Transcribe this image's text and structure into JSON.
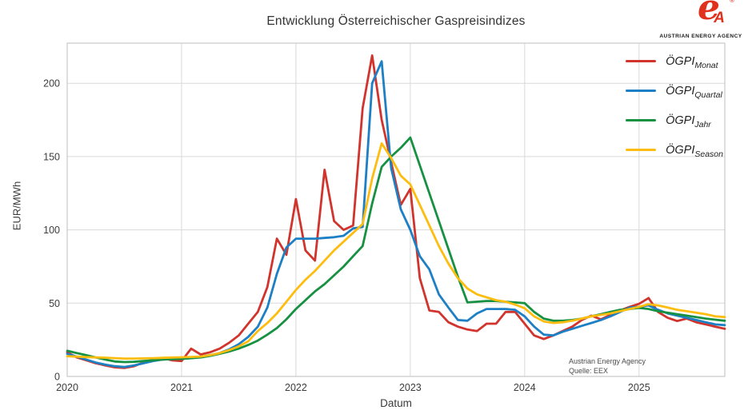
{
  "header": {
    "logo": {
      "letter_e": "e",
      "letter_a": "A",
      "registered_mark": "®",
      "caption": "AUSTRIAN ENERGY AGENCY"
    }
  },
  "chart_data": {
    "type": "line",
    "title": "Entwicklung Österreichischer Gaspreisindizes",
    "xlabel": "Datum",
    "ylabel": "EUR/MWh",
    "x_start_month": "2020-01",
    "x_end_month": "2025-10",
    "x_tick_labels": [
      "2020",
      "2021",
      "2022",
      "2023",
      "2024",
      "2025"
    ],
    "x_tick_month_indices": [
      0,
      12,
      24,
      36,
      48,
      60
    ],
    "y_ticks": [
      0,
      50,
      100,
      150,
      200
    ],
    "ylim": [
      0,
      227.4
    ],
    "grid": true,
    "legend_position": "upper right",
    "annotation": {
      "line1": "Austrian Energy Agency",
      "line2": "Quelle: EEX"
    },
    "series": [
      {
        "name": "ÖGPI",
        "sub": "Monat",
        "color": "#d0342c",
        "values": [
          16.5,
          13,
          11,
          9,
          7.5,
          6.2,
          5.8,
          7,
          9.5,
          11.5,
          12.5,
          11,
          10.5,
          19,
          15,
          16.5,
          19,
          23,
          28,
          36,
          44,
          61,
          94,
          83,
          121,
          86,
          79,
          141,
          106,
          100,
          103,
          183,
          219,
          175,
          146,
          117,
          128,
          67,
          45,
          44,
          37,
          34,
          32,
          31,
          36,
          36,
          44,
          44,
          36,
          28,
          25.5,
          28,
          31,
          34,
          38.5,
          41.5,
          39,
          42,
          45,
          47.5,
          49.5,
          53.5,
          44,
          40,
          37.8,
          39.5,
          37,
          35.5,
          34,
          32.5
        ]
      },
      {
        "name": "ÖGPI",
        "sub": "Quartal",
        "color": "#1d7fc4",
        "values": [
          15.5,
          13.5,
          11.5,
          9.5,
          8,
          7,
          6.5,
          7.5,
          9,
          10.5,
          11.5,
          11.8,
          12,
          12.5,
          13.5,
          14.5,
          16,
          18.5,
          22,
          27,
          34,
          47,
          70,
          88,
          94,
          94,
          94,
          94.5,
          95,
          96,
          101,
          102,
          200,
          215,
          142,
          114,
          100,
          82,
          73,
          56,
          47,
          38.5,
          38,
          43,
          46,
          46,
          46,
          45.5,
          41,
          34,
          28.5,
          28,
          30.5,
          32.5,
          34.5,
          36.5,
          38.5,
          41,
          44,
          47,
          47.5,
          48.5,
          45.5,
          43,
          41.5,
          40,
          38.5,
          37,
          35.5,
          35
        ]
      },
      {
        "name": "ÖGPI",
        "sub": "Jahr",
        "color": "#169142",
        "values": [
          17.5,
          16,
          14.5,
          13,
          11.5,
          10.2,
          9.8,
          10,
          10.5,
          11,
          11.5,
          11.8,
          12,
          12.5,
          13,
          14,
          15.5,
          17,
          19,
          21.5,
          24.5,
          28.5,
          33,
          39,
          46,
          52,
          58,
          63,
          69,
          75,
          82,
          89,
          118,
          143,
          150,
          156,
          163,
          144,
          125,
          106,
          87,
          68,
          50.5,
          51,
          51.5,
          51.5,
          51,
          50.5,
          50,
          44,
          39.5,
          38,
          38,
          38.5,
          39.5,
          41,
          42.5,
          44,
          45.5,
          46,
          46.8,
          46,
          44.5,
          43.5,
          42.5,
          41.5,
          40.5,
          39.5,
          38.7,
          38
        ]
      },
      {
        "name": "ÖGPI",
        "sub": "Season",
        "color": "#fdbd10",
        "values": [
          13.8,
          13.5,
          13.2,
          13,
          12.8,
          12.5,
          12.2,
          12.2,
          12.3,
          12.5,
          12.7,
          12.9,
          13.1,
          13.3,
          13.6,
          14.5,
          16,
          18,
          20.5,
          24,
          31,
          36.5,
          43,
          51,
          59,
          66,
          72,
          79,
          86,
          92,
          98,
          104,
          135,
          159,
          149,
          137,
          131,
          117,
          103,
          89,
          77,
          67,
          60,
          56,
          54,
          52,
          51,
          49,
          46.5,
          41,
          37.5,
          36.5,
          37,
          38,
          39.5,
          41,
          42,
          43,
          44.5,
          46,
          47.5,
          49.3,
          48.5,
          47,
          45.5,
          44.5,
          43.5,
          42.5,
          41,
          40.5
        ]
      }
    ]
  }
}
